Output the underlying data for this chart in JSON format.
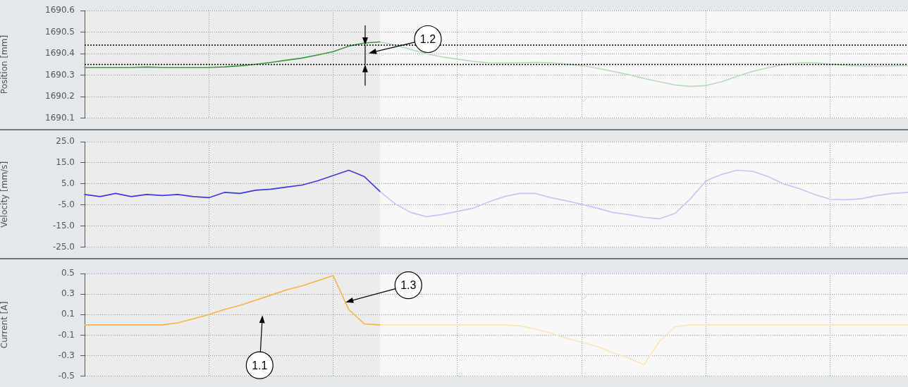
{
  "chart_data": [
    {
      "type": "line",
      "ylabel": "Position [mm]",
      "categories": [
        null,
        null,
        null,
        null,
        null,
        null,
        null,
        null,
        null,
        null,
        null,
        null,
        null,
        null,
        null,
        null,
        null,
        null,
        null,
        null,
        null,
        null,
        null,
        null,
        null,
        null,
        null,
        null,
        null,
        null,
        null,
        null,
        null,
        null,
        null,
        null,
        null,
        null,
        null,
        null,
        null,
        null,
        null,
        null,
        null,
        null,
        null,
        null,
        null,
        null,
        null,
        null,
        null,
        null
      ],
      "ylim": [
        1690.1,
        1690.6
      ],
      "yticks": [
        1690.1,
        1690.2,
        1690.3,
        1690.4,
        1690.5,
        1690.6
      ],
      "tick_labels": "y",
      "grid": true,
      "ref_lines": [
        {
          "axis": "y",
          "value": 1690.35,
          "line_style": "dotted",
          "color": "#000000"
        },
        {
          "axis": "y",
          "value": 1690.44,
          "line_style": "dotted",
          "color": "#000000"
        }
      ],
      "annotations": [
        "1.2"
      ],
      "series": [
        {
          "color": "#3c9a3c",
          "values": [
            1690.336,
            1690.336,
            1690.336,
            1690.336,
            1690.338,
            1690.336,
            1690.336,
            1690.336,
            1690.336,
            1690.339,
            1690.344,
            1690.351,
            1690.36,
            1690.37,
            1690.38,
            1690.394,
            1690.41,
            1690.435,
            1690.45,
            1690.455,
            null,
            null,
            null,
            null,
            null,
            null,
            null,
            null,
            null,
            null,
            null,
            null,
            null,
            null,
            null,
            null,
            null,
            null,
            null,
            null,
            null,
            null,
            null,
            null,
            null,
            null,
            null,
            null,
            null,
            null,
            null,
            null,
            null,
            null
          ]
        },
        {
          "color": "#b5dbb5",
          "values": [
            null,
            null,
            null,
            null,
            null,
            null,
            null,
            null,
            null,
            null,
            null,
            null,
            null,
            null,
            null,
            null,
            null,
            null,
            null,
            1690.455,
            1690.44,
            1690.42,
            1690.4,
            1690.385,
            1690.375,
            1690.365,
            1690.358,
            1690.357,
            1690.358,
            1690.36,
            1690.358,
            1690.352,
            1690.345,
            1690.333,
            1690.318,
            1690.303,
            1690.285,
            1690.27,
            1690.255,
            1690.248,
            1690.252,
            1690.27,
            1690.295,
            1690.318,
            1690.335,
            1690.35,
            1690.358,
            1690.358,
            1690.352,
            1690.347,
            1690.343,
            1690.342,
            1690.343,
            1690.345
          ]
        }
      ]
    },
    {
      "type": "line",
      "ylabel": "Velocity [mm/s]",
      "categories": [
        null,
        null,
        null,
        null,
        null,
        null,
        null,
        null,
        null,
        null,
        null,
        null,
        null,
        null,
        null,
        null,
        null,
        null,
        null,
        null,
        null,
        null,
        null,
        null,
        null,
        null,
        null,
        null,
        null,
        null,
        null,
        null,
        null,
        null,
        null,
        null,
        null,
        null,
        null,
        null,
        null,
        null,
        null,
        null,
        null,
        null,
        null,
        null,
        null,
        null,
        null,
        null,
        null,
        null
      ],
      "ylim": [
        -25,
        25
      ],
      "yticks": [
        {
          "value": -25,
          "label": "-25.0"
        },
        {
          "value": -15,
          "label": "-15.0"
        },
        {
          "value": -5,
          "label": "-5.0"
        },
        {
          "value": 5,
          "label": "5.0"
        },
        {
          "value": 15,
          "label": "15.0"
        },
        {
          "value": 25,
          "label": "25.0"
        }
      ],
      "tick_labels": "y",
      "grid": true,
      "series": [
        {
          "color": "#3a3ae6",
          "values": [
            0,
            -1,
            0.5,
            -1,
            0,
            -0.5,
            0,
            -1,
            -1.5,
            1,
            0.5,
            2,
            2.5,
            3.5,
            4.5,
            6.5,
            9,
            11.5,
            8.5,
            1.5,
            null,
            null,
            null,
            null,
            null,
            null,
            null,
            null,
            null,
            null,
            null,
            null,
            null,
            null,
            null,
            null,
            null,
            null,
            null,
            null,
            null,
            null,
            null,
            null,
            null,
            null,
            null,
            null,
            null,
            null,
            null,
            null,
            null,
            null
          ]
        },
        {
          "color": "#c4c4fb",
          "values": [
            null,
            null,
            null,
            null,
            null,
            null,
            null,
            null,
            null,
            null,
            null,
            null,
            null,
            null,
            null,
            null,
            null,
            null,
            null,
            1.5,
            -4.5,
            -8.5,
            -10.5,
            -9.5,
            -8,
            -6.5,
            -3.5,
            -1,
            0.5,
            0.5,
            -1.5,
            -3,
            -4.6,
            -6.5,
            -8.5,
            -9.5,
            -10.8,
            -11.5,
            -9,
            -2,
            6.5,
            9.5,
            11.5,
            11,
            8.5,
            5,
            2.8,
            0,
            -2.3,
            -2.5,
            -2,
            -0.5,
            0.5,
            1
          ]
        }
      ]
    },
    {
      "type": "line",
      "ylabel": "Current [A]",
      "categories": [
        null,
        null,
        null,
        null,
        null,
        null,
        null,
        null,
        null,
        null,
        null,
        null,
        null,
        null,
        null,
        null,
        null,
        null,
        null,
        null,
        null,
        null,
        null,
        null,
        null,
        null,
        null,
        null,
        null,
        null,
        null,
        null,
        null,
        null,
        null,
        null,
        null,
        null,
        null,
        null,
        null,
        null,
        null,
        null,
        null,
        null,
        null,
        null,
        null,
        null,
        null,
        null,
        null,
        null
      ],
      "ylim": [
        -0.5,
        0.5
      ],
      "yticks": [
        -0.5,
        -0.3,
        -0.1,
        0.1,
        0.3,
        0.5
      ],
      "tick_labels": "y",
      "grid": true,
      "annotations": [
        "1.1",
        "1.3"
      ],
      "series": [
        {
          "color": "#f5b342",
          "values": [
            0,
            0,
            0,
            0,
            0,
            0,
            0.02,
            0.06,
            0.1,
            0.15,
            0.19,
            0.24,
            0.29,
            0.34,
            0.38,
            0.43,
            0.48,
            0.15,
            0.01,
            0,
            null,
            null,
            null,
            null,
            null,
            null,
            null,
            null,
            null,
            null,
            null,
            null,
            null,
            null,
            null,
            null,
            null,
            null,
            null,
            null,
            null,
            null,
            null,
            null,
            null,
            null,
            null,
            null,
            null,
            null,
            null,
            null,
            null,
            null
          ]
        },
        {
          "color": "#fde3b5",
          "values": [
            null,
            null,
            null,
            null,
            null,
            null,
            null,
            null,
            null,
            null,
            null,
            null,
            null,
            null,
            null,
            null,
            null,
            null,
            null,
            0,
            0,
            0,
            0,
            0,
            0,
            0,
            0,
            0,
            -0.01,
            -0.04,
            -0.08,
            -0.13,
            -0.17,
            -0.21,
            -0.27,
            -0.32,
            -0.39,
            -0.16,
            -0.02,
            0,
            0,
            0,
            0,
            0,
            0,
            0,
            0,
            0,
            0,
            0,
            0,
            0,
            0,
            0
          ]
        }
      ]
    }
  ]
}
